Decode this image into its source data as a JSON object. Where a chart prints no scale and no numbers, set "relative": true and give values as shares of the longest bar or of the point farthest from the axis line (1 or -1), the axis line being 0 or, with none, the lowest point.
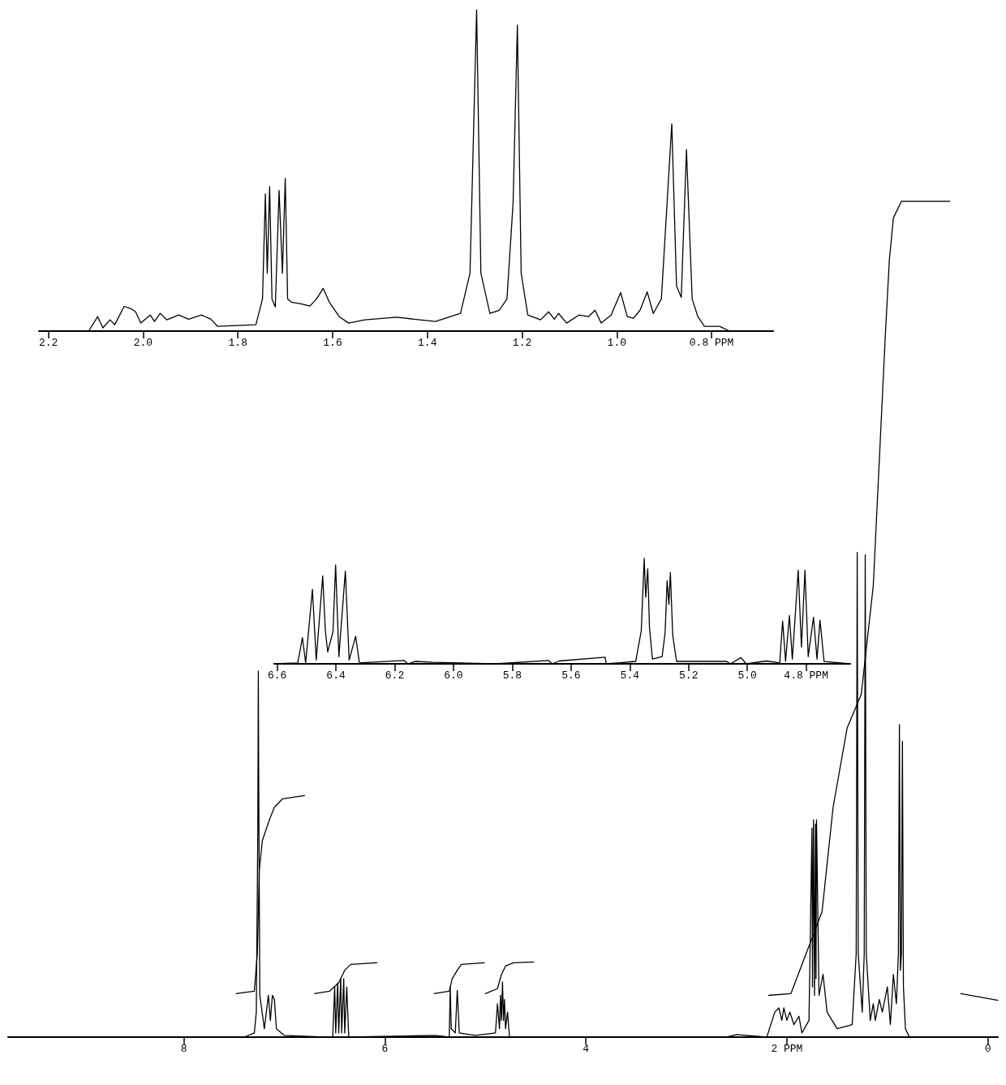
{
  "chart_data": [
    {
      "type": "line",
      "relative": true,
      "tick_labels": "x",
      "xlim": [
        9.75,
        -0.1
      ],
      "xticks": [
        8,
        6,
        4,
        {
          "value": 2,
          "label": "2 PPM"
        },
        0
      ],
      "series": [
        {
          "color": "#000000",
          "x": [
            9.75,
            7.4,
            7.3,
            7.28,
            7.265,
            7.26,
            7.255,
            7.245,
            7.2,
            7.16,
            7.14,
            7.12,
            7.1,
            7.08,
            7.0,
            6.6,
            6.52,
            6.5,
            6.49,
            6.47,
            6.46,
            6.44,
            6.43,
            6.41,
            6.4,
            6.38,
            6.36,
            5.5,
            5.36,
            5.35,
            5.34,
            5.3,
            5.28,
            5.26,
            5.1,
            4.9,
            4.88,
            4.86,
            4.85,
            4.84,
            4.83,
            4.82,
            4.81,
            4.8,
            4.78,
            4.76,
            2.6,
            2.5,
            2.2,
            2.12,
            2.08,
            2.05,
            2.03,
            2.0,
            1.97,
            1.93,
            1.88,
            1.85,
            1.78,
            1.75,
            1.745,
            1.735,
            1.725,
            1.715,
            1.71,
            1.705,
            1.68,
            1.64,
            1.6,
            1.5,
            1.35,
            1.31,
            1.3,
            1.29,
            1.25,
            1.23,
            1.22,
            1.21,
            1.17,
            1.14,
            1.12,
            1.08,
            1.05,
            1.0,
            0.97,
            0.94,
            0.91,
            0.89,
            0.88,
            0.87,
            0.86,
            0.85,
            0.84,
            0.82,
            0.78,
            -0.1
          ],
          "values": [
            0,
            0,
            0.005,
            0.03,
            0.25,
            0.438,
            0.28,
            0.05,
            0.01,
            0.05,
            0.02,
            0.05,
            0.045,
            0.01,
            0.002,
            0,
            0,
            0.06,
            0.005,
            0.065,
            0.005,
            0.07,
            0.005,
            0.07,
            0.005,
            0.06,
            0,
            0.002,
            0,
            0.06,
            0.01,
            0.005,
            0.056,
            0.005,
            0.002,
            0.005,
            0.04,
            0.01,
            0.05,
            0.02,
            0.066,
            0.02,
            0.045,
            0.01,
            0.03,
            0,
            0,
            0.003,
            0,
            0.03,
            0.035,
            0.02,
            0.035,
            0.02,
            0.03,
            0.015,
            0.025,
            0.005,
            0.02,
            0.25,
            0.06,
            0.26,
            0.05,
            0.255,
            0.07,
            0.26,
            0.05,
            0.075,
            0.03,
            0.01,
            0.015,
            0.1,
            0.58,
            0.1,
            0.03,
            0.1,
            0.577,
            0.1,
            0.02,
            0.04,
            0.02,
            0.045,
            0.03,
            0.06,
            0.015,
            0.075,
            0.04,
            0.1,
            0.374,
            0.08,
            0.1,
            0.354,
            0.06,
            0.01,
            0,
            0
          ]
        },
        {
          "color": "#000000",
          "x": [
            7.48,
            7.3,
            7.27,
            7.25,
            7.22,
            7.15,
            7.1,
            7.02,
            6.8
          ],
          "values": [
            0.052,
            0.055,
            0.1,
            0.2,
            0.235,
            0.26,
            0.275,
            0.285,
            0.289
          ]
        },
        {
          "color": "#000000",
          "x": [
            6.7,
            6.55,
            6.46,
            6.4,
            6.34,
            6.08
          ],
          "values": [
            0.052,
            0.055,
            0.065,
            0.08,
            0.087,
            0.089
          ]
        },
        {
          "color": "#000000",
          "x": [
            5.51,
            5.36,
            5.33,
            5.28,
            5.24,
            5.01
          ],
          "values": [
            0.052,
            0.055,
            0.07,
            0.08,
            0.087,
            0.089
          ]
        },
        {
          "color": "#000000",
          "x": [
            5.0,
            4.88,
            4.84,
            4.8,
            4.72,
            4.52
          ],
          "values": [
            0.052,
            0.058,
            0.075,
            0.085,
            0.089,
            0.09
          ]
        },
        {
          "color": "#000000",
          "x": [
            2.18,
            1.96,
            1.65,
            1.54,
            1.4,
            1.26,
            1.14,
            1.06,
            1.02,
            0.98,
            0.94,
            0.86,
            0.38
          ],
          "values": [
            0.05,
            0.052,
            0.15,
            0.275,
            0.37,
            0.41,
            0.54,
            0.74,
            0.84,
            0.93,
            0.98,
            1.0,
            1.0
          ]
        },
        {
          "color": "#000000",
          "x": [
            0.27,
            -0.1
          ],
          "values": [
            0.052,
            0.044
          ]
        }
      ]
    },
    {
      "type": "line",
      "relative": true,
      "tick_labels": "x",
      "xlim": [
        2.22,
        0.67
      ],
      "xticks": [
        2.2,
        {
          "value": 2.0,
          "label": "2.0"
        },
        1.8,
        1.6,
        1.4,
        1.2,
        {
          "value": 1.0,
          "label": "1.0"
        },
        {
          "value": 0.8,
          "label": "0.8 PPM"
        }
      ],
      "series": [
        {
          "color": "#000000",
          "x": [
            2.22,
            2.115,
            2.096,
            2.085,
            2.07,
            2.06,
            2.04,
            2.026,
            2.016,
            2.005,
            1.985,
            1.976,
            1.964,
            1.95,
            1.925,
            1.904,
            1.877,
            1.857,
            1.843,
            1.762,
            1.748,
            1.742,
            1.738,
            1.733,
            1.728,
            1.721,
            1.713,
            1.706,
            1.7,
            1.695,
            1.687,
            1.667,
            1.648,
            1.634,
            1.62,
            1.607,
            1.586,
            1.566,
            1.532,
            1.465,
            1.383,
            1.33,
            1.31,
            1.296,
            1.287,
            1.268,
            1.248,
            1.232,
            1.219,
            1.21,
            1.202,
            1.188,
            1.161,
            1.144,
            1.132,
            1.123,
            1.106,
            1.08,
            1.06,
            1.046,
            1.033,
            1.012,
            0.992,
            0.978,
            0.965,
            0.951,
            0.936,
            0.923,
            0.906,
            0.884,
            0.874,
            0.864,
            0.853,
            0.841,
            0.829,
            0.815,
            0.783,
            0.762,
            0.67
          ],
          "values": [
            0,
            0,
            0.045,
            0.01,
            0.035,
            0.02,
            0.077,
            0.07,
            0.06,
            0.025,
            0.05,
            0.03,
            0.055,
            0.035,
            0.05,
            0.037,
            0.05,
            0.037,
            0.015,
            0.02,
            0.1,
            0.427,
            0.18,
            0.45,
            0.1,
            0.075,
            0.438,
            0.18,
            0.475,
            0.1,
            0.09,
            0.085,
            0.078,
            0.1,
            0.133,
            0.09,
            0.045,
            0.025,
            0.035,
            0.043,
            0.03,
            0.055,
            0.18,
            1.0,
            0.18,
            0.055,
            0.065,
            0.1,
            0.4,
            0.952,
            0.18,
            0.05,
            0.035,
            0.06,
            0.037,
            0.055,
            0.025,
            0.05,
            0.045,
            0.065,
            0.025,
            0.05,
            0.12,
            0.045,
            0.04,
            0.065,
            0.122,
            0.055,
            0.1,
            0.645,
            0.14,
            0.105,
            0.565,
            0.1,
            0.045,
            0.015,
            0.015,
            0,
            0
          ]
        }
      ]
    },
    {
      "type": "line",
      "relative": true,
      "tick_labels": "x",
      "xlim": [
        6.61,
        4.65
      ],
      "xticks": [
        6.6,
        6.4,
        6.2,
        {
          "value": 6.0,
          "label": "6.0"
        },
        5.8,
        5.6,
        5.4,
        5.2,
        {
          "value": 5.0,
          "label": "5.0"
        },
        {
          "value": 4.8,
          "label": "4.8 PPM"
        }
      ],
      "series": [
        {
          "color": "#000000",
          "x": [
            6.61,
            6.53,
            6.514,
            6.503,
            6.48,
            6.467,
            6.445,
            6.436,
            6.428,
            6.41,
            6.401,
            6.39,
            6.368,
            6.355,
            6.333,
            6.32,
            6.168,
            6.155,
            6.13,
            6.07,
            5.858,
            5.677,
            5.664,
            5.641,
            5.484,
            5.48,
            5.38,
            5.361,
            5.351,
            5.346,
            5.339,
            5.333,
            5.323,
            5.29,
            5.28,
            5.273,
            5.267,
            5.262,
            5.254,
            5.241,
            5.161,
            5.071,
            5.058,
            5.022,
            5.004,
            4.935,
            4.89,
            4.88,
            4.87,
            4.857,
            4.847,
            4.827,
            4.816,
            4.804,
            4.793,
            4.775,
            4.763,
            4.753,
            4.739,
            4.65
          ],
          "values": [
            0,
            0.009,
            0.248,
            0.009,
            0.707,
            0.036,
            0.833,
            0.315,
            0.113,
            0.306,
            0.937,
            0.068,
            0.878,
            0.036,
            0.261,
            0.009,
            0.032,
            0,
            0.023,
            0.014,
            0,
            0.032,
            0,
            0.027,
            0.063,
            0,
            0.023,
            0.315,
            1.0,
            0.631,
            0.901,
            0.338,
            0.045,
            0.068,
            0.293,
            0.788,
            0.563,
            0.865,
            0.27,
            0.023,
            0.023,
            0.023,
            0,
            0.059,
            0,
            0.027,
            0.009,
            0.405,
            0.023,
            0.459,
            0.045,
            0.887,
            0.158,
            0.887,
            0.068,
            0.441,
            0.045,
            0.414,
            0.023,
            0
          ]
        }
      ]
    }
  ]
}
